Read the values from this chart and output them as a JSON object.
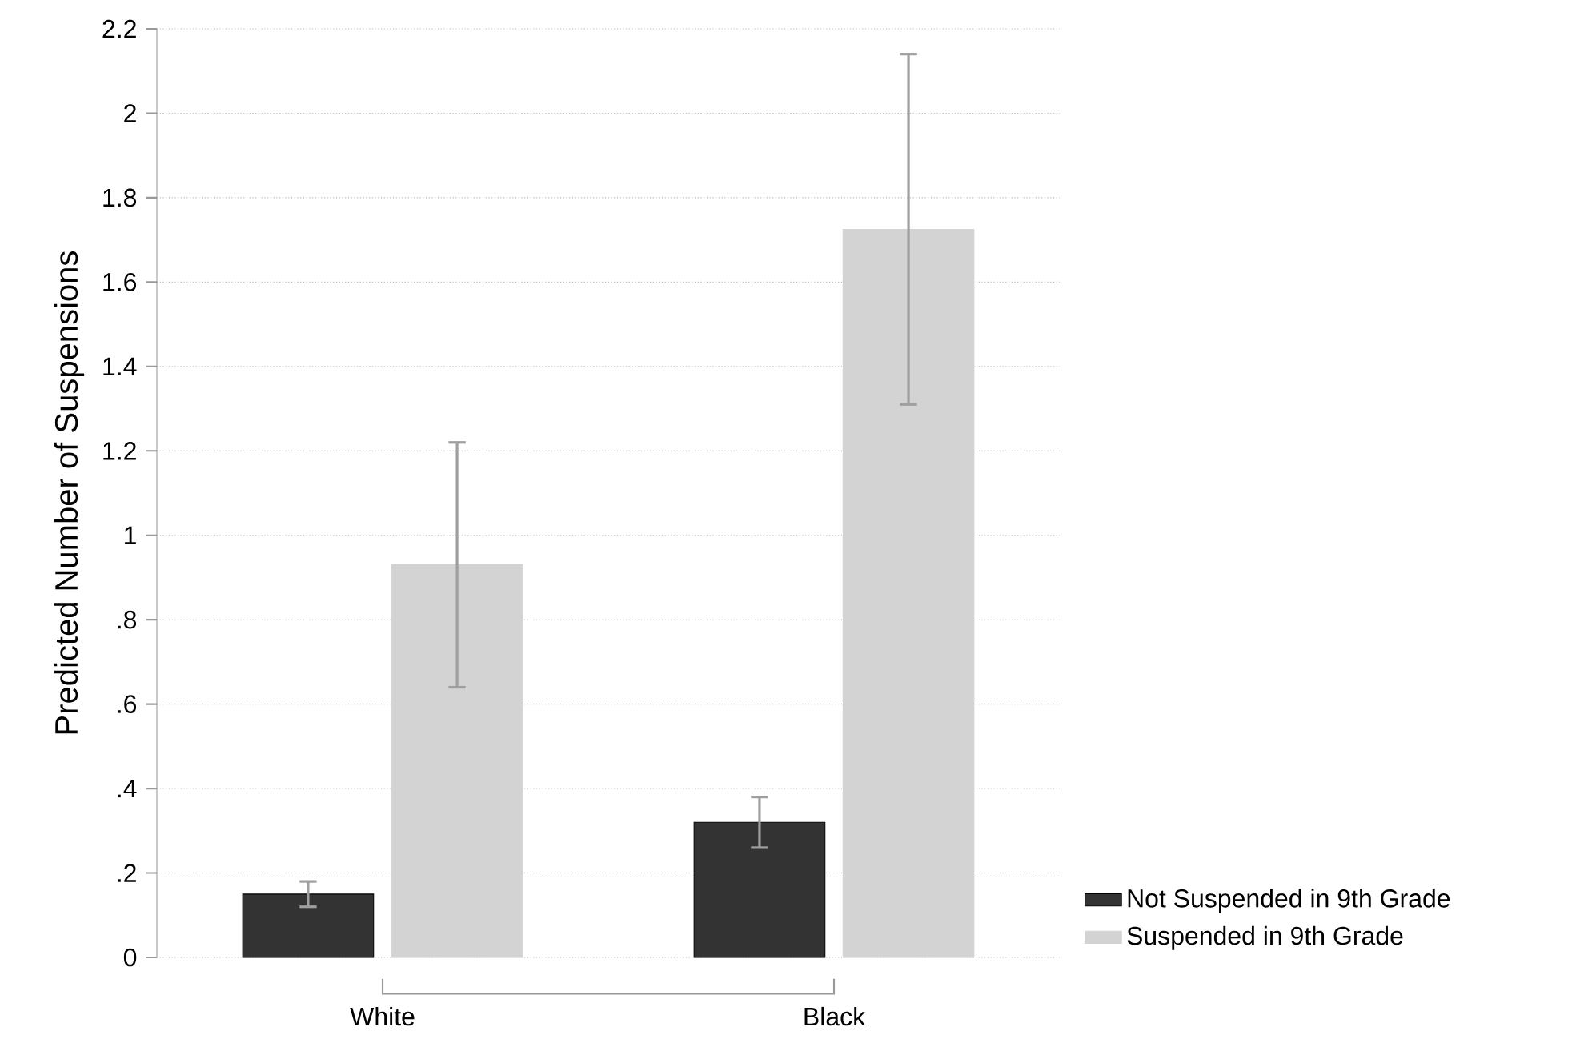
{
  "chart_data": {
    "type": "bar",
    "ylabel": "Predicted Number of Suspensions",
    "categories": [
      "White",
      "Black"
    ],
    "series": [
      {
        "name": "Not Suspended in 9th Grade",
        "color": "#333333",
        "values": [
          0.15,
          0.32
        ],
        "errors": [
          [
            0.12,
            0.18
          ],
          [
            0.26,
            0.38
          ]
        ]
      },
      {
        "name": "Suspended in 9th Grade",
        "color": "#d3d3d3",
        "values": [
          0.93,
          1.725
        ],
        "errors": [
          [
            0.64,
            1.22
          ],
          [
            1.31,
            2.14
          ]
        ]
      }
    ],
    "ylim": [
      0,
      2.2
    ],
    "yticks": [
      0,
      {
        "value": 0.2,
        "label": ".2"
      },
      {
        "value": 0.4,
        "label": ".4"
      },
      {
        "value": 0.6,
        "label": ".6"
      },
      {
        "value": 0.8,
        "label": ".8"
      },
      1,
      1.2,
      1.4,
      1.6,
      1.8,
      2,
      2.2
    ],
    "grid": "y",
    "legend": "bottom right"
  }
}
